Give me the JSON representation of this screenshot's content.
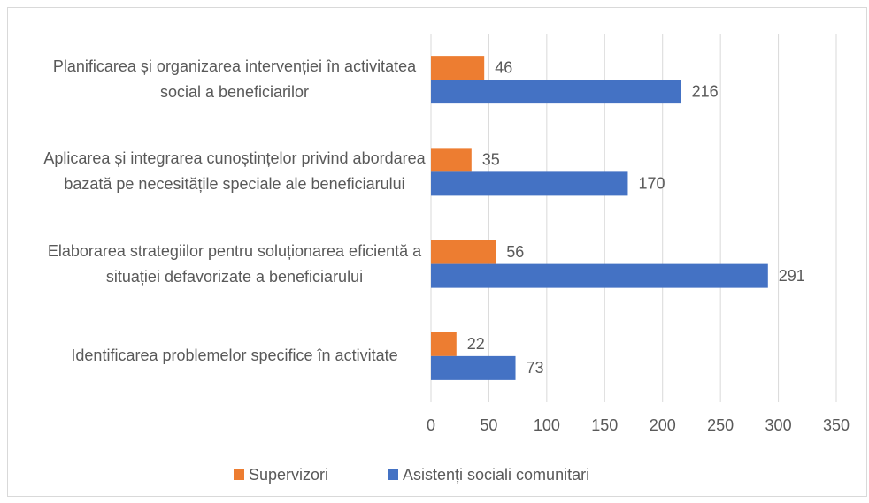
{
  "chart_data": {
    "type": "hbar",
    "categories": [
      "Planificarea și organizarea  intervenției în activitatea social a  beneficiarilor",
      "Aplicarea și integrarea cunoștințelor privind abordarea bazată pe necesitățile speciale ale beneficiarului",
      "Elaborarea strategiilor pentru soluționarea eficientă a situației defavorizate a beneficiarului",
      "Identificarea problemelor specifice în activitate"
    ],
    "series": [
      {
        "name": "Supervizori",
        "color": "#ed7d31",
        "values": [
          46,
          35,
          56,
          22
        ]
      },
      {
        "name": "Asistenți sociali comunitari",
        "color": "#4472c4",
        "values": [
          216,
          170,
          291,
          73
        ]
      }
    ],
    "xlim": [
      0,
      350
    ],
    "xticks": [
      0,
      50,
      100,
      150,
      200,
      250,
      300,
      350
    ],
    "grid": true,
    "legend": "bottom"
  }
}
